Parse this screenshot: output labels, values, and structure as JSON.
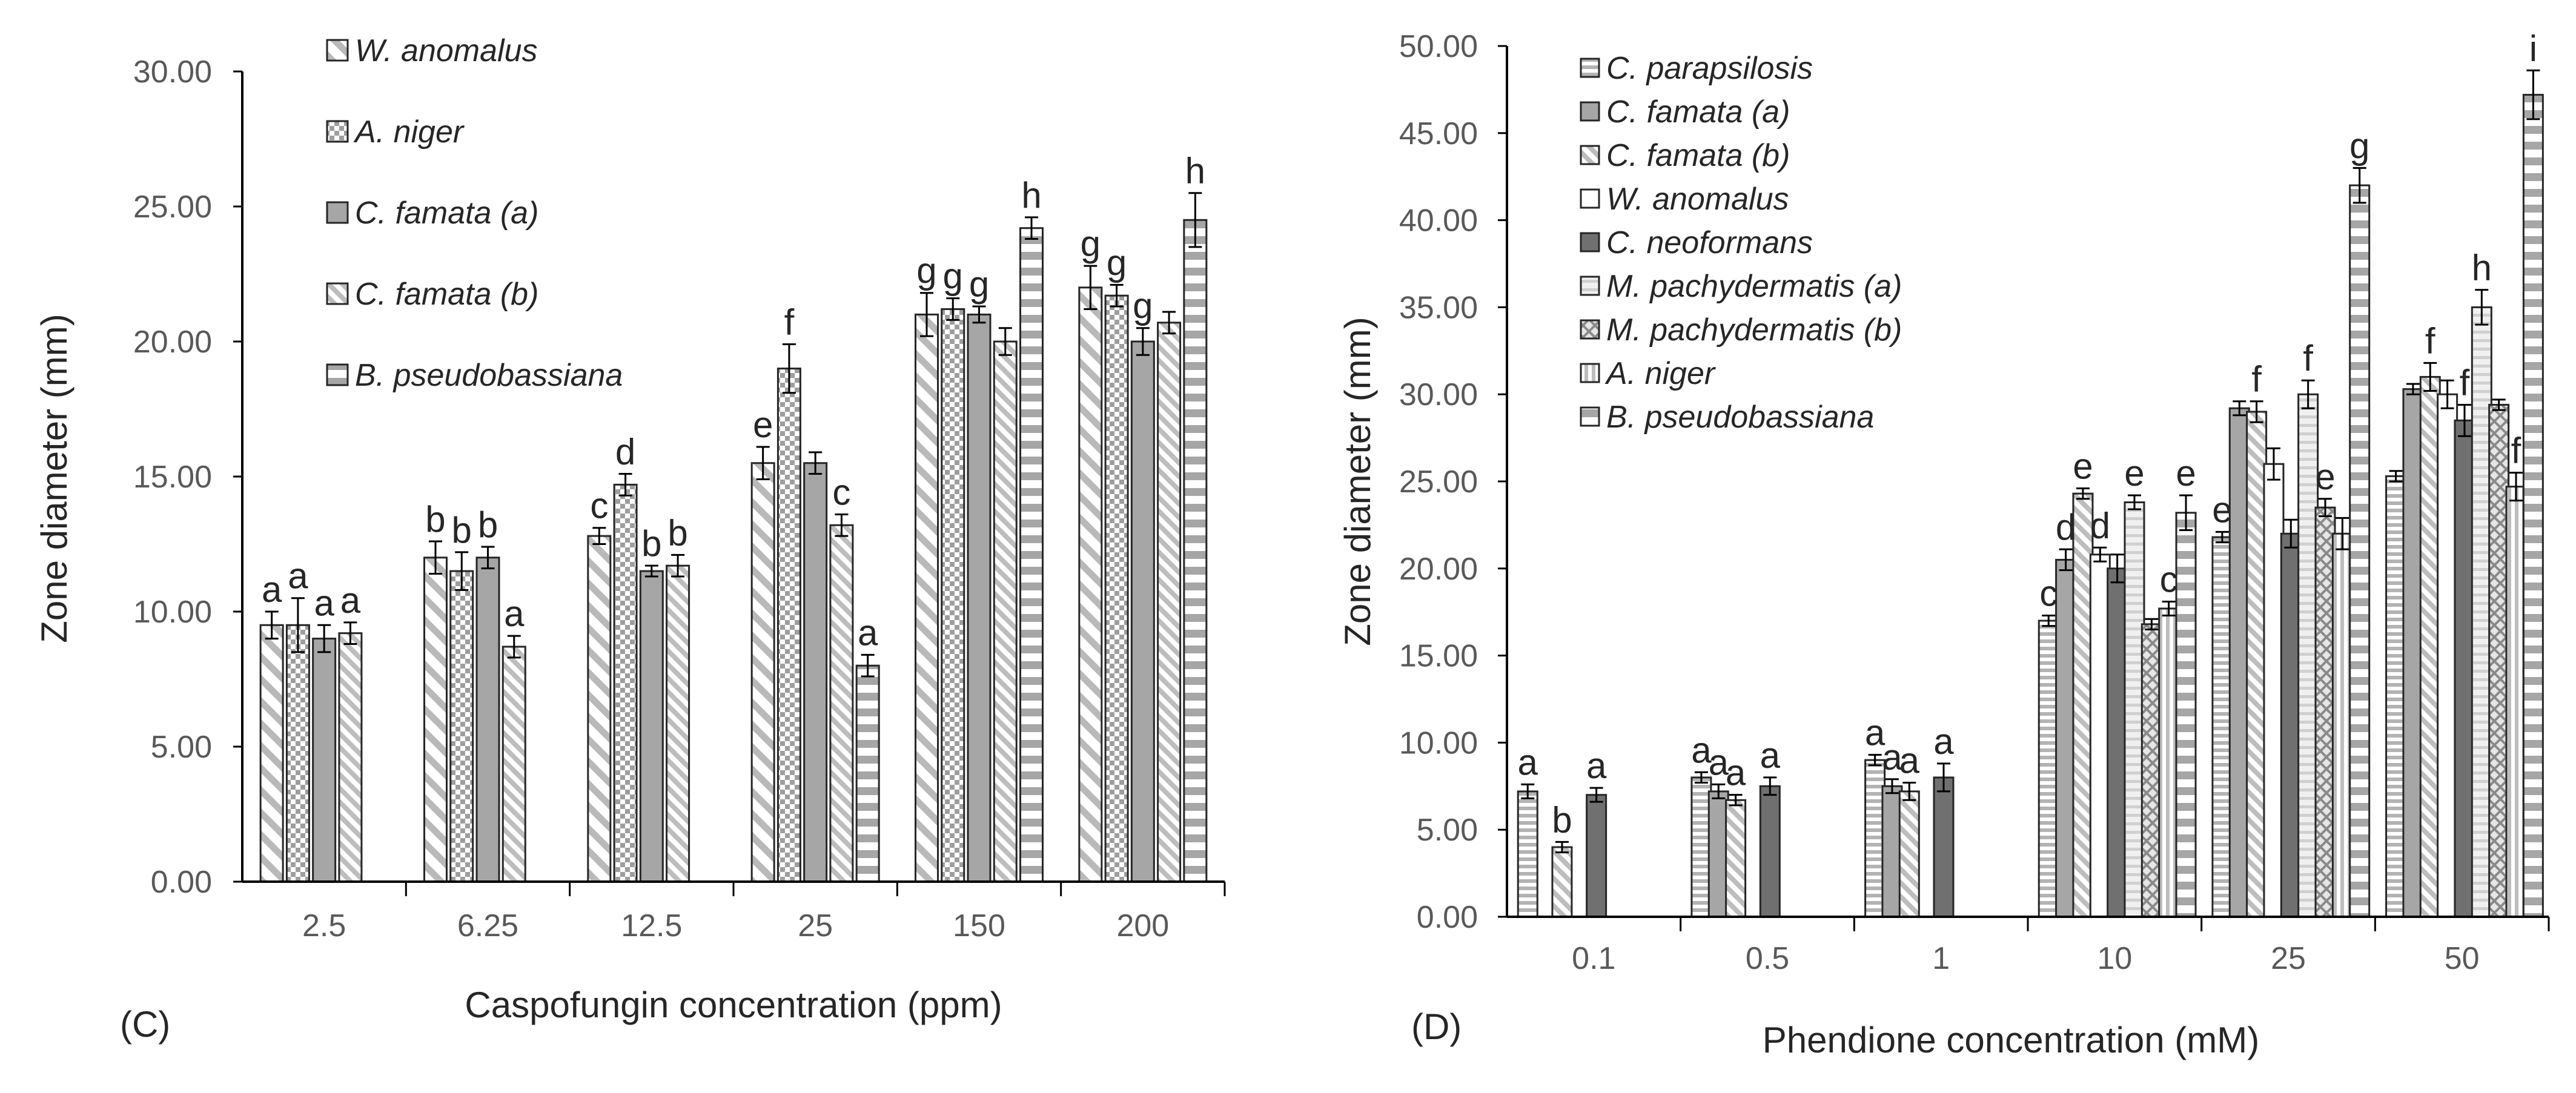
{
  "chart_data": [
    {
      "type": "bar",
      "panel_label": "(C)",
      "xlabel": "Caspofungin concentration (ppm)",
      "ylabel": "Zone diameter (mm)",
      "ylim": [
        0,
        30
      ],
      "yticks": [
        "0.00",
        "5.00",
        "10.00",
        "15.00",
        "20.00",
        "25.00",
        "30.00"
      ],
      "categories": [
        "2.5",
        "6.25",
        "12.5",
        "25",
        "150",
        "200"
      ],
      "legend_position": "top-left (inside plot)",
      "series": [
        {
          "name": "W. anomalus",
          "pattern": "diag-light",
          "values": [
            9.5,
            12.0,
            12.8,
            15.5,
            21.0,
            22.0
          ],
          "errors": [
            0.5,
            0.6,
            0.3,
            0.6,
            0.8,
            0.8
          ],
          "letters": [
            "a",
            "b",
            "c",
            "e",
            "g",
            "g"
          ]
        },
        {
          "name": "A. niger",
          "pattern": "checker",
          "values": [
            9.5,
            11.5,
            14.7,
            19.0,
            21.2,
            21.7
          ],
          "errors": [
            1.0,
            0.7,
            0.4,
            0.9,
            0.4,
            0.4
          ],
          "letters": [
            "a",
            "b",
            "d",
            "f",
            "g",
            "g"
          ]
        },
        {
          "name": "C. famata (a)",
          "pattern": "solid-gray",
          "values": [
            9.0,
            12.0,
            11.5,
            15.5,
            21.0,
            20.0
          ],
          "errors": [
            0.5,
            0.4,
            0.2,
            0.4,
            0.3,
            0.5
          ],
          "letters": [
            "a",
            "b",
            "b",
            "",
            "g",
            "g"
          ]
        },
        {
          "name": "C. famata (b)",
          "pattern": "diag-fine",
          "values": [
            9.2,
            8.7,
            11.7,
            13.2,
            20.0,
            20.7
          ],
          "errors": [
            0.4,
            0.4,
            0.4,
            0.4,
            0.5,
            0.4
          ],
          "letters": [
            "a",
            "a",
            "b",
            "c",
            "",
            ""
          ]
        },
        {
          "name": "B. pseudobassiana",
          "pattern": "dash-bar",
          "values": [
            null,
            null,
            null,
            8.0,
            24.2,
            24.5
          ],
          "errors": [
            0,
            0,
            0,
            0.4,
            0.4,
            1.0
          ],
          "letters": [
            "",
            "",
            "",
            "a",
            "h",
            "h"
          ]
        }
      ]
    },
    {
      "type": "bar",
      "panel_label": "(D)",
      "xlabel": "Phendione concentration (mM)",
      "ylabel": "Zone diameter (mm)",
      "ylim": [
        0,
        50
      ],
      "yticks": [
        "0.00",
        "5.00",
        "10.00",
        "15.00",
        "20.00",
        "25.00",
        "30.00",
        "35.00",
        "40.00",
        "45.00",
        "50.00"
      ],
      "categories": [
        "0.1",
        "0.5",
        "1",
        "10",
        "25",
        "50"
      ],
      "legend_position": "top-left (inside plot)",
      "series": [
        {
          "name": "C. parapsilosis",
          "pattern": "hstripe",
          "values": [
            7.2,
            8.0,
            9.0,
            17.0,
            21.8,
            25.3
          ],
          "errors": [
            0.4,
            0.3,
            0.3,
            0.3,
            0.3,
            0.3
          ],
          "letters": [
            "a",
            "a",
            "a",
            "c",
            "e",
            ""
          ]
        },
        {
          "name": "C. famata (a)",
          "pattern": "solid-gray",
          "values": [
            null,
            7.2,
            7.5,
            20.5,
            29.2,
            30.3
          ],
          "errors": [
            0,
            0.4,
            0.4,
            0.6,
            0.4,
            0.3
          ],
          "letters": [
            "",
            "a",
            "a",
            "d",
            "",
            ""
          ]
        },
        {
          "name": "C. famata (b)",
          "pattern": "diag-fine",
          "values": [
            4.0,
            6.7,
            7.2,
            24.3,
            29.0,
            31.0
          ],
          "errors": [
            0.3,
            0.3,
            0.5,
            0.3,
            0.6,
            0.8
          ],
          "letters": [
            "b",
            "a",
            "a",
            "e",
            "f",
            "f"
          ]
        },
        {
          "name": "W. anomalus",
          "pattern": "white-border",
          "values": [
            null,
            null,
            null,
            20.8,
            26.0,
            30.0
          ],
          "errors": [
            0,
            0,
            0,
            0.4,
            0.9,
            0.8
          ],
          "letters": [
            "",
            "",
            "",
            "d",
            "",
            ""
          ]
        },
        {
          "name": "C. neoformans",
          "pattern": "dark-gray",
          "values": [
            7.0,
            7.5,
            8.0,
            20.0,
            22.0,
            28.5
          ],
          "errors": [
            0.4,
            0.5,
            0.8,
            0.8,
            0.8,
            0.9
          ],
          "letters": [
            "a",
            "a",
            "a",
            "",
            "",
            "f"
          ]
        },
        {
          "name": "M. pachydermatis (a)",
          "pattern": "white-stripe",
          "values": [
            null,
            null,
            null,
            23.8,
            30.0,
            35.0
          ],
          "errors": [
            0,
            0,
            0,
            0.4,
            0.8,
            1.0
          ],
          "letters": [
            "",
            "",
            "",
            "e",
            "f",
            "h"
          ]
        },
        {
          "name": "M. pachydermatis (b)",
          "pattern": "crosshatch",
          "values": [
            null,
            null,
            null,
            16.8,
            23.5,
            29.4
          ],
          "errors": [
            0,
            0,
            0,
            0.3,
            0.5,
            0.3
          ],
          "letters": [
            "",
            "",
            "",
            "",
            "e",
            ""
          ]
        },
        {
          "name": "A. niger",
          "pattern": "vstripe",
          "values": [
            null,
            null,
            null,
            17.7,
            22.0,
            24.7
          ],
          "errors": [
            0,
            0,
            0,
            0.4,
            0.9,
            0.8
          ],
          "letters": [
            "",
            "",
            "",
            "c",
            "",
            "f"
          ]
        },
        {
          "name": "B. pseudobassiana",
          "pattern": "dash-bar",
          "values": [
            null,
            null,
            null,
            23.2,
            42.0,
            47.2
          ],
          "errors": [
            0,
            0,
            0,
            1.0,
            1.0,
            1.4
          ],
          "letters": [
            "",
            "",
            "",
            "e",
            "g",
            "i"
          ]
        }
      ]
    }
  ]
}
